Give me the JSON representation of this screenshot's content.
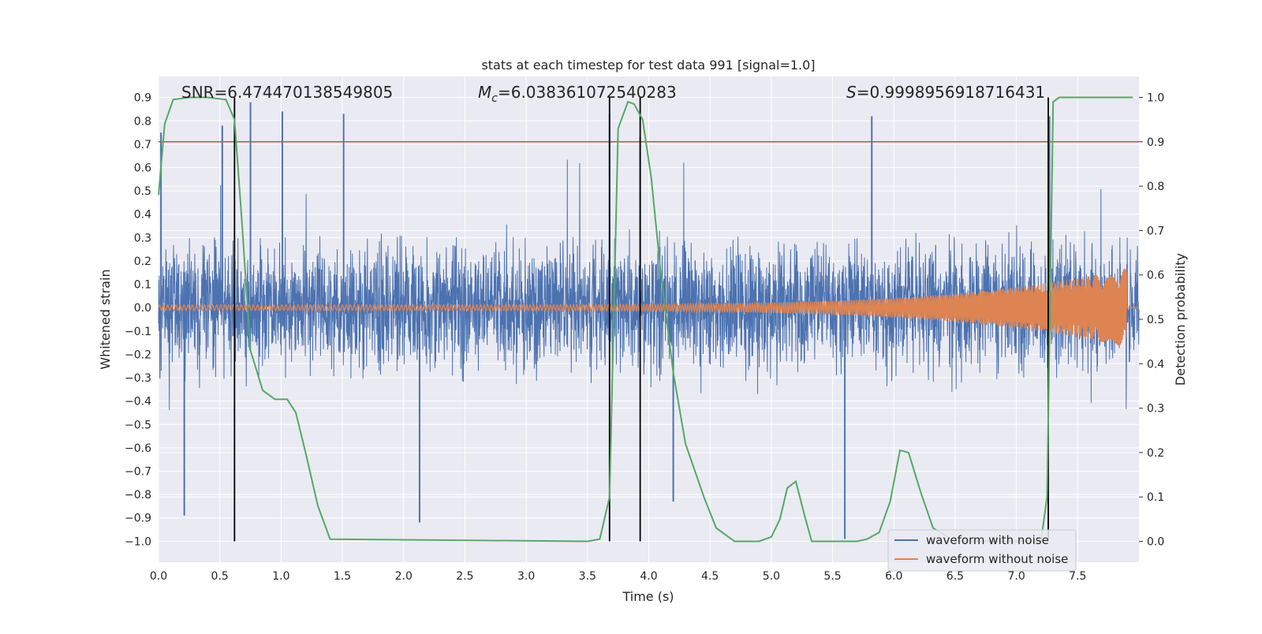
{
  "chart_data": {
    "type": "line",
    "title": "stats at each timestep for test data 991 [signal=1.0]",
    "xlabel": "Time (s)",
    "ylabel_left": "Whitened strain",
    "ylabel_right": "Detection probability",
    "xlim": [
      0.0,
      8.0
    ],
    "ylim_left": [
      -1.09,
      0.99
    ],
    "ylim_right": [
      -0.047,
      1.047
    ],
    "x_ticks": [
      "0.0",
      "0.5",
      "1.0",
      "1.5",
      "2.0",
      "2.5",
      "3.0",
      "3.5",
      "4.0",
      "4.5",
      "5.0",
      "5.5",
      "6.0",
      "6.5",
      "7.0",
      "7.5"
    ],
    "y_left_ticks": [
      "0.9",
      "0.8",
      "0.7",
      "0.6",
      "0.5",
      "0.4",
      "0.3",
      "0.2",
      "0.1",
      "0.0",
      "−0.1",
      "−0.2",
      "−0.3",
      "−0.4",
      "−0.5",
      "−0.6",
      "−0.7",
      "−0.8",
      "−0.9",
      "−1.0"
    ],
    "y_right_ticks": [
      "1.0",
      "0.9",
      "0.8",
      "0.7",
      "0.6",
      "0.5",
      "0.4",
      "0.3",
      "0.2",
      "0.1",
      "0.0"
    ],
    "grid": true,
    "legend_position": "bottom-right",
    "colors": {
      "noise": "#4c72b0",
      "clean": "#dd8452",
      "probability": "#55a868",
      "threshold": "#c44e52",
      "markers": "#000000",
      "background": "#eaeaf2"
    },
    "annotations": {
      "snr": "SNR=6.474470138549805",
      "mc_symbol": "M",
      "mc_sub": "c",
      "mc_value": "=6.038361072540283",
      "s_symbol": "S",
      "s_value": "=0.9998956918716431"
    },
    "legend": [
      {
        "label": "waveform with noise",
        "color": "#4c72b0"
      },
      {
        "label": "waveform without noise",
        "color": "#dd8452"
      }
    ],
    "threshold_probability": 0.9,
    "vertical_markers": [
      0.62,
      3.68,
      3.93,
      7.26
    ],
    "series": [
      {
        "name": "waveform with noise",
        "axis": "left",
        "description_points": "dense noise, typical amplitude band -0.45 to 0.45",
        "peak_values": [
          {
            "x": 0.02,
            "y": 0.75
          },
          {
            "x": 0.21,
            "y": -0.89
          },
          {
            "x": 0.52,
            "y": 0.78
          },
          {
            "x": 0.75,
            "y": 0.88
          },
          {
            "x": 1.01,
            "y": 0.84
          },
          {
            "x": 1.51,
            "y": 0.83
          },
          {
            "x": 2.13,
            "y": -0.92
          },
          {
            "x": 3.68,
            "y": 0.83
          },
          {
            "x": 3.93,
            "y": 0.73
          },
          {
            "x": 4.2,
            "y": -0.83
          },
          {
            "x": 5.6,
            "y": -0.99
          },
          {
            "x": 5.82,
            "y": 0.82
          },
          {
            "x": 7.27,
            "y": 0.82
          }
        ]
      },
      {
        "name": "waveform without noise",
        "axis": "left",
        "amplitude_start": 0.012,
        "amplitude_end": 0.17,
        "merger_time": 7.9
      },
      {
        "axis": "right",
        "x": [
          0.0,
          0.05,
          0.12,
          0.25,
          0.4,
          0.55,
          0.62,
          0.68,
          0.75,
          0.85,
          0.95,
          1.05,
          1.12,
          1.2,
          1.3,
          1.4,
          3.5,
          3.6,
          3.68,
          3.75,
          3.83,
          3.88,
          3.95,
          4.02,
          4.1,
          4.2,
          4.3,
          4.45,
          4.55,
          4.7,
          4.9,
          5.0,
          5.07,
          5.13,
          5.2,
          5.27,
          5.33,
          5.4,
          5.5,
          5.7,
          5.78,
          5.88,
          5.97,
          6.05,
          6.12,
          6.22,
          6.32,
          6.5,
          7.2,
          7.25,
          7.3,
          7.35,
          7.95
        ],
        "y": [
          0.78,
          0.94,
          0.995,
          1.0,
          1.0,
          0.995,
          0.95,
          0.72,
          0.43,
          0.34,
          0.32,
          0.32,
          0.29,
          0.2,
          0.08,
          0.005,
          0.0,
          0.005,
          0.1,
          0.93,
          0.99,
          0.985,
          0.95,
          0.82,
          0.6,
          0.38,
          0.22,
          0.1,
          0.03,
          0.0,
          0.0,
          0.01,
          0.05,
          0.12,
          0.135,
          0.06,
          0.0,
          0.0,
          0.0,
          0.0,
          0.005,
          0.02,
          0.09,
          0.205,
          0.2,
          0.11,
          0.03,
          0.0,
          0.0,
          0.1,
          0.99,
          1.0,
          1.0
        ]
      }
    ]
  }
}
